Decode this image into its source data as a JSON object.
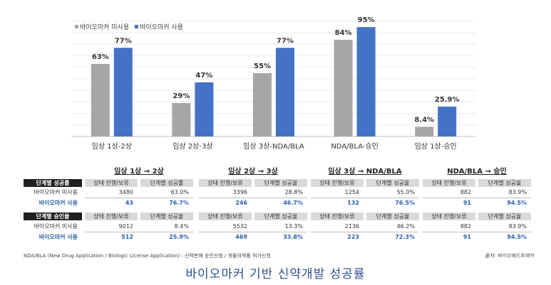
{
  "chart_data": {
    "type": "bar",
    "categories": [
      "임상 1상-2상",
      "임상 2상-3상",
      "임상 3상-NDA/BLA",
      "NDA/BLA-승인",
      "임상 1상-승인"
    ],
    "series": [
      {
        "name": "바이오마커 미사용",
        "values": [
          63,
          29,
          55,
          84,
          8.4
        ],
        "labels": [
          "63%",
          "29%",
          "55%",
          "84%",
          "8.4%"
        ],
        "color": "#a6a6a6"
      },
      {
        "name": "바이오마커 사용",
        "values": [
          77,
          47,
          77,
          95,
          25.9
        ],
        "labels": [
          "77%",
          "47%",
          "77%",
          "95%",
          "25.9%"
        ],
        "color": "#4472c4"
      }
    ],
    "ylim": [
      0,
      100
    ],
    "grid": true,
    "legend": "top-left"
  },
  "table": {
    "labels": {
      "success_header": "단계별 성공률",
      "non_user": "바이오마커 미사용",
      "user": "바이오마커 사용",
      "approval_header": "단계별 승인율"
    },
    "stages": [
      {
        "title": "임상 1상 → 2상",
        "col1": "상태 진행/보류",
        "col2": "단계별 성공률",
        "col2b": "단계별 성공율",
        "success": [
          [
            "3480",
            "63.0%"
          ],
          [
            "43",
            "76.7%"
          ]
        ],
        "approval": [
          [
            "9012",
            "8.4%"
          ],
          [
            "512",
            "25.9%"
          ]
        ]
      },
      {
        "title": "임상 2상 → 3상",
        "col1": "상태 진행/보류",
        "col2": "단계별 성공율",
        "col2b": "단계별 성공율",
        "success": [
          [
            "3396",
            "28.8%"
          ],
          [
            "246",
            "46.7%"
          ]
        ],
        "approval": [
          [
            "5532",
            "13.3%"
          ],
          [
            "469",
            "33.8%"
          ]
        ]
      },
      {
        "title": "임상 3상 → NDA/BLA",
        "col1": "상태 진행/보류",
        "col2": "단계별 성공율",
        "col2b": "단계별 성공율",
        "success": [
          [
            "1254",
            "55.0%"
          ],
          [
            "132",
            "76.5%"
          ]
        ],
        "approval": [
          [
            "2136",
            "46.2%"
          ],
          [
            "223",
            "72.3%"
          ]
        ]
      },
      {
        "title": "NDA/BLA → 승인",
        "col1": "상태 진행/보류",
        "col2": "단계별 성공율",
        "col2b": "단계별 성공율",
        "success": [
          [
            "882",
            "83.9%"
          ],
          [
            "91",
            "94.5%"
          ]
        ],
        "approval": [
          [
            "882",
            "83.9%"
          ],
          [
            "91",
            "94.5%"
          ]
        ]
      }
    ]
  },
  "footnote": "NDA/BLA (New Drug Application / Biologic License Application) : 신약판매 승인신청 / 생물의약품 허가신청",
  "source": "출처: 바이오메드트래커",
  "caption": "바이오마커 기반 신약개발 성공률"
}
